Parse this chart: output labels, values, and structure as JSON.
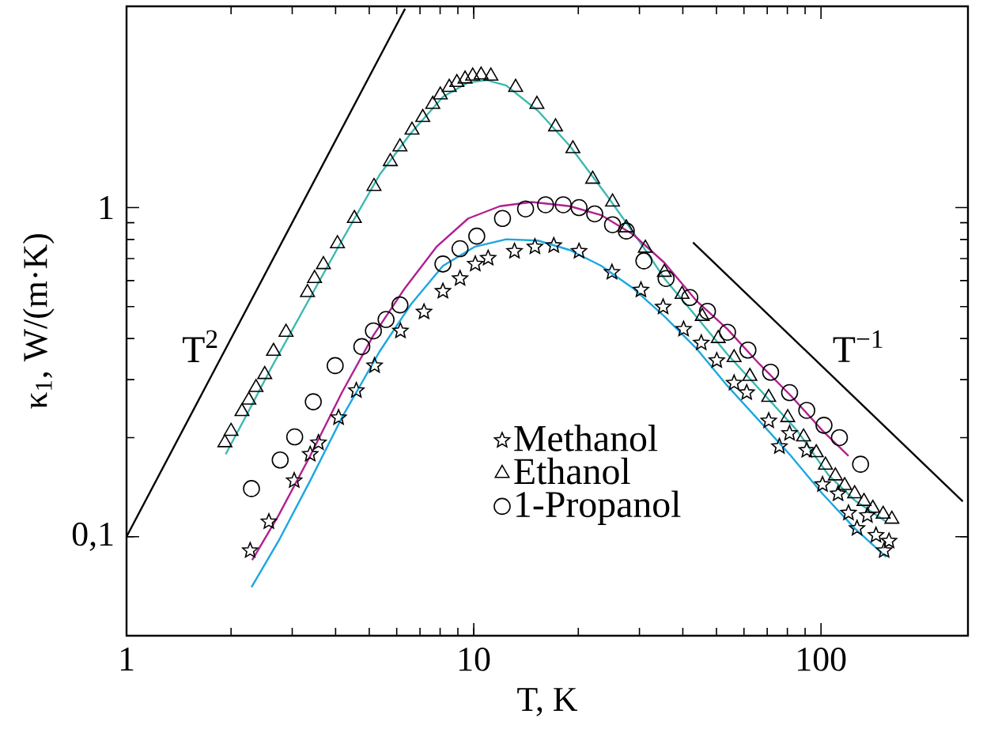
{
  "chart_data": {
    "type": "scatter",
    "xlabel": "T, K",
    "ylabel": "κ$_{1}$, W/(m·K)",
    "log": "xy",
    "grid": false,
    "legend": "bottom",
    "xlim": [
      1,
      265
    ],
    "ylim": [
      0.05,
      4.09
    ],
    "xticks": [
      1,
      10,
      100
    ],
    "yticks": [
      {
        "value": 0.1,
        "label": "0,1"
      },
      1
    ],
    "annotations": [
      "T$^{2}$",
      "T$^{−1}$"
    ],
    "series": [
      {
        "name": "Methanol",
        "color": "#000000",
        "marker": "star",
        "x": [
          2.27,
          2.57,
          3.04,
          3.38,
          3.57,
          4.08,
          4.59,
          5.18,
          6.15,
          7.19,
          8.15,
          9.13,
          10.1,
          11.0,
          13.1,
          15.0,
          17.0,
          20.1,
          25.0,
          30.3,
          35.1,
          40.2,
          45.2,
          50.1,
          56.2,
          61.1,
          70.7,
          75.9,
          81.2,
          91.0,
          101,
          112,
          120,
          127,
          136,
          144,
          152,
          157
        ],
        "values": [
          0.0907,
          0.111,
          0.148,
          0.178,
          0.193,
          0.23,
          0.278,
          0.331,
          0.422,
          0.482,
          0.557,
          0.609,
          0.674,
          0.702,
          0.737,
          0.76,
          0.767,
          0.737,
          0.636,
          0.562,
          0.499,
          0.427,
          0.388,
          0.343,
          0.293,
          0.274,
          0.225,
          0.188,
          0.206,
          0.183,
          0.144,
          0.135,
          0.118,
          0.106,
          0.116,
          0.101,
          0.0907,
          0.097
        ]
      },
      {
        "name": "Ethanol",
        "color": "#000000",
        "marker": "triangle",
        "x": [
          1.92,
          2.0,
          2.15,
          2.25,
          2.36,
          2.5,
          2.65,
          2.88,
          3.32,
          3.48,
          3.69,
          4.05,
          4.53,
          5.16,
          5.75,
          6.13,
          6.64,
          7.13,
          7.62,
          8.01,
          8.5,
          8.94,
          9.44,
          9.93,
          10.5,
          11.2,
          13.2,
          15.2,
          17.2,
          19.3,
          22.0,
          25.1,
          27.5,
          31.2,
          35.4,
          39.8,
          45.5,
          50.6,
          56.2,
          62.4,
          70.7,
          80.2,
          89.1,
          96.9,
          103,
          110,
          117,
          125,
          133,
          141,
          151,
          160
        ],
        "values": [
          0.193,
          0.209,
          0.24,
          0.26,
          0.284,
          0.311,
          0.366,
          0.418,
          0.552,
          0.609,
          0.671,
          0.777,
          0.927,
          1.16,
          1.38,
          1.53,
          1.72,
          1.88,
          2.06,
          2.2,
          2.32,
          2.4,
          2.46,
          2.51,
          2.53,
          2.51,
          2.32,
          2.06,
          1.76,
          1.51,
          1.22,
          1.04,
          0.868,
          0.753,
          0.636,
          0.545,
          0.467,
          0.4,
          0.35,
          0.307,
          0.265,
          0.23,
          0.201,
          0.18,
          0.165,
          0.153,
          0.143,
          0.135,
          0.128,
          0.122,
          0.117,
          0.113
        ]
      },
      {
        "name": "1-Propanol",
        "color": "#000000",
        "marker": "circle",
        "x": [
          2.29,
          2.77,
          3.05,
          3.45,
          3.99,
          4.76,
          5.14,
          5.59,
          6.13,
          8.15,
          9.13,
          10.2,
          12.1,
          14.1,
          16.1,
          18.1,
          20.1,
          22.3,
          25.1,
          27.5,
          30.9,
          35.8,
          41.9,
          47.1,
          53.8,
          61.6,
          71.6,
          81.2,
          91.0,
          102,
          113,
          130
        ],
        "values": [
          0.14,
          0.171,
          0.201,
          0.257,
          0.331,
          0.378,
          0.422,
          0.457,
          0.506,
          0.674,
          0.75,
          0.819,
          0.927,
          0.991,
          1.02,
          1.02,
          1.0,
          0.957,
          0.887,
          0.849,
          0.689,
          0.609,
          0.533,
          0.484,
          0.418,
          0.369,
          0.316,
          0.274,
          0.242,
          0.218,
          0.2,
          0.166
        ]
      },
      {
        "type": "line",
        "color": "#1aa7e0",
        "x": [
          2.29,
          2.74,
          3.38,
          4.17,
          5.36,
          6.61,
          8.15,
          10.05,
          12.4,
          15.3,
          18.9,
          23.3,
          28.7,
          35.4,
          43.7,
          53.8,
          66.4,
          81.9,
          101,
          125,
          154
        ],
        "values": [
          0.0702,
          0.097,
          0.148,
          0.23,
          0.366,
          0.51,
          0.665,
          0.76,
          0.801,
          0.794,
          0.743,
          0.665,
          0.57,
          0.467,
          0.374,
          0.287,
          0.225,
          0.176,
          0.135,
          0.106,
          0.0868
        ]
      },
      {
        "type": "line",
        "color": "#3bb8b0",
        "x": [
          1.93,
          2.22,
          2.62,
          3.24,
          4.17,
          5.36,
          6.61,
          8.15,
          9.64,
          10.9,
          12.4,
          15.3,
          18.9,
          24.3,
          29.9,
          35.4,
          43.7,
          53.8,
          66.4,
          85.4,
          105,
          125,
          154
        ],
        "values": [
          0.178,
          0.235,
          0.328,
          0.492,
          0.794,
          1.26,
          1.69,
          2.17,
          2.4,
          2.44,
          2.35,
          1.97,
          1.54,
          1.08,
          0.794,
          0.609,
          0.467,
          0.358,
          0.281,
          0.21,
          0.154,
          0.129,
          0.111
        ]
      },
      {
        "type": "line",
        "color": "#b0208f",
        "x": [
          2.3,
          2.74,
          3.38,
          4.17,
          5.14,
          6.34,
          7.81,
          9.64,
          11.9,
          14.7,
          18.9,
          23.3,
          28.7,
          35.4,
          43.7,
          53.8,
          66.4,
          81.9,
          101,
          120
        ],
        "values": [
          0.0849,
          0.116,
          0.176,
          0.274,
          0.409,
          0.57,
          0.76,
          0.927,
          1.01,
          1.04,
          1.01,
          0.948,
          0.83,
          0.68,
          0.522,
          0.427,
          0.335,
          0.268,
          0.21,
          0.176
        ]
      },
      {
        "type": "line",
        "color": "#000000",
        "x": [
          1,
          6.34
        ],
        "values": [
          0.1,
          4.02
        ]
      },
      {
        "type": "line",
        "color": "#000000",
        "x": [
          42.8,
          256
        ],
        "values": [
          0.784,
          0.128
        ]
      }
    ]
  }
}
